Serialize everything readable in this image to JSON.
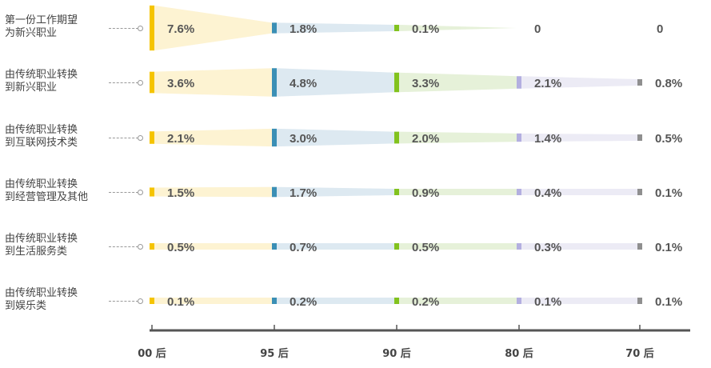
{
  "chart_data": {
    "type": "bar",
    "categories": [
      "00 后",
      "95 后",
      "90 后",
      "80 后",
      "70 后"
    ],
    "series": [
      {
        "label_lines": [
          "第一份工作期望",
          "为新兴职业"
        ],
        "values": [
          7.6,
          1.8,
          0.1,
          0,
          0
        ],
        "value_labels": [
          "7.6%",
          "1.8%",
          "0.1%",
          "0",
          "0"
        ]
      },
      {
        "label_lines": [
          "由传统职业转换",
          "到新兴职业"
        ],
        "values": [
          3.6,
          4.8,
          3.3,
          2.1,
          0.8
        ],
        "value_labels": [
          "3.6%",
          "4.8%",
          "3.3%",
          "2.1%",
          "0.8%"
        ]
      },
      {
        "label_lines": [
          "由传统职业转换",
          "到互联网技术类"
        ],
        "values": [
          2.1,
          3.0,
          2.0,
          1.4,
          0.5
        ],
        "value_labels": [
          "2.1%",
          "3.0%",
          "2.0%",
          "1.4%",
          "0.5%"
        ]
      },
      {
        "label_lines": [
          "由传统职业转换",
          "到经营管理及其他"
        ],
        "values": [
          1.5,
          1.7,
          0.9,
          0.4,
          0.1
        ],
        "value_labels": [
          "1.5%",
          "1.7%",
          "0.9%",
          "0.4%",
          "0.1%"
        ]
      },
      {
        "label_lines": [
          "由传统职业转换",
          "到生活服务类"
        ],
        "values": [
          0.5,
          0.7,
          0.5,
          0.3,
          0.1
        ],
        "value_labels": [
          "0.5%",
          "0.7%",
          "0.5%",
          "0.3%",
          "0.1%"
        ]
      },
      {
        "label_lines": [
          "由传统职业转换",
          "到娱乐类"
        ],
        "values": [
          0.1,
          0.2,
          0.2,
          0.1,
          0.1
        ],
        "value_labels": [
          "0.1%",
          "0.2%",
          "0.2%",
          "0.1%",
          "0.1%"
        ]
      }
    ],
    "colors": {
      "bars": [
        "#f5c400",
        "#3b8fb5",
        "#82c21e",
        "#b3afe0",
        "#8f8f8f"
      ],
      "fills": [
        "#fdf3d2",
        "#dde9f1",
        "#e6f1d9",
        "#ecebf5",
        "#ffffff"
      ],
      "axis": "#555555",
      "text": "#555555"
    }
  }
}
